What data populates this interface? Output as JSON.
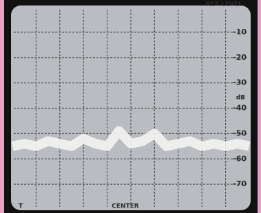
{
  "chart_data": {
    "type": "line",
    "title": "REF LEVEL",
    "y_label": "dB",
    "annotations": [
      "CENTER",
      "T"
    ],
    "categories": [
      null,
      null,
      null,
      null,
      null,
      null,
      null,
      null,
      null,
      null,
      null,
      null,
      null,
      null,
      null,
      null,
      null,
      null,
      null,
      null,
      null
    ],
    "values": [
      -55,
      -54,
      -55,
      -53,
      -54,
      -55,
      -52,
      -54,
      -55,
      -49,
      -54,
      -53,
      -50,
      -55,
      -54,
      -53,
      -55,
      -54,
      -55,
      -54,
      -55
    ],
    "color": "#f4f4f2",
    "ylim": [
      -80,
      0
    ],
    "yticks": [
      -10,
      -20,
      -30,
      -40,
      -50,
      -60,
      -70
    ],
    "grid": true
  }
}
